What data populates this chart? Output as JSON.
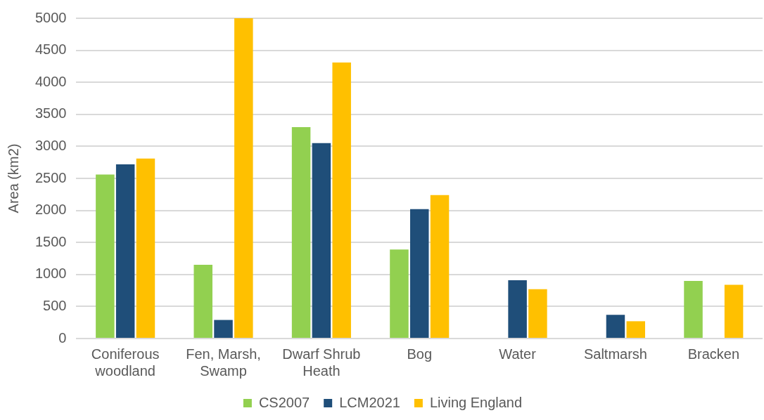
{
  "chart_data": {
    "type": "bar",
    "ylabel": "Area (km2)",
    "categories": [
      "Coniferous woodland",
      "Fen, Marsh, Swamp",
      "Dwarf Shrub Heath",
      "Bog",
      "Water",
      "Saltmarsh",
      "Bracken"
    ],
    "series": [
      {
        "name": "CS2007",
        "color": "#92d050",
        "values": [
          2560,
          1150,
          3300,
          1390,
          null,
          null,
          900
        ]
      },
      {
        "name": "LCM2021",
        "color": "#1f4e79",
        "values": [
          2720,
          290,
          3050,
          2020,
          910,
          370,
          null
        ]
      },
      {
        "name": "Living England",
        "color": "#ffc000",
        "values": [
          2810,
          5000,
          4310,
          2240,
          770,
          270,
          840
        ]
      }
    ],
    "ylim": [
      0,
      5000
    ],
    "yticks": [
      0,
      500,
      1000,
      1500,
      2000,
      2500,
      3000,
      3500,
      4000,
      4500,
      5000
    ],
    "grid": "y",
    "legend": "bottom"
  }
}
